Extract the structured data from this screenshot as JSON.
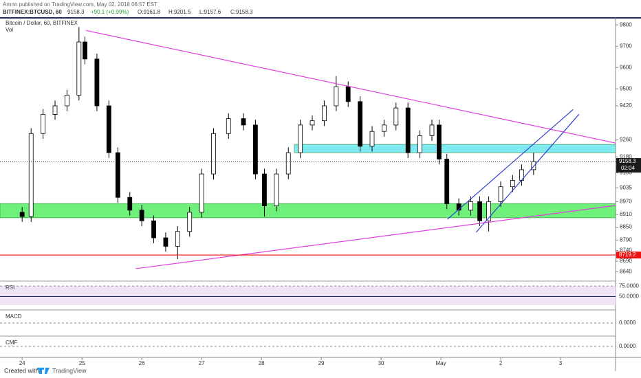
{
  "header": {
    "publisher": "Arnnn published on TradingView.com, May 02, 2018 06:57 EST",
    "symbol": "BITFINEX:BTCUSD, 60",
    "last": "9158.3",
    "change": "+90.1 (+0.99%)",
    "open": "O:9161.8",
    "high": "H:9201.5",
    "low": "L:9157.6",
    "close": "C:9158.3"
  },
  "footer": {
    "created": "Created with",
    "brand": "TradingView"
  },
  "chart_data": {
    "type": "candlestick",
    "title": "Bitcoin / Dollar, 60, BITFINEX",
    "subtitle": "Vol",
    "xlim": [
      -0.37,
      9.92
    ],
    "xticks": [
      {
        "value": 0,
        "label": "24"
      },
      {
        "value": 1,
        "label": "25"
      },
      {
        "value": 2,
        "label": "26"
      },
      {
        "value": 3,
        "label": "27"
      },
      {
        "value": 4,
        "label": "28"
      },
      {
        "value": 5,
        "label": "29"
      },
      {
        "value": 6,
        "label": "30"
      },
      {
        "value": 7,
        "label": "May"
      },
      {
        "value": 8,
        "label": "2"
      },
      {
        "value": 9,
        "label": "3"
      }
    ],
    "ylim": [
      8600,
      9830
    ],
    "yticks": [
      9800,
      9700,
      9600,
      9500,
      9420,
      9260,
      9180,
      9105,
      9035,
      8970,
      8910,
      8850,
      8790,
      8740,
      8690,
      8640
    ],
    "x": [
      0.0,
      0.15,
      0.35,
      0.55,
      0.75,
      0.95,
      1.05,
      1.25,
      1.45,
      1.6,
      1.8,
      2.0,
      2.2,
      2.4,
      2.6,
      2.8,
      3.0,
      3.2,
      3.45,
      3.7,
      3.9,
      4.05,
      4.25,
      4.45,
      4.65,
      4.85,
      5.05,
      5.25,
      5.45,
      5.65,
      5.85,
      6.05,
      6.25,
      6.45,
      6.65,
      6.85,
      6.97,
      7.1,
      7.3,
      7.5,
      7.65,
      7.8,
      8.0,
      8.2,
      8.35,
      8.55
    ],
    "opens": [
      8920,
      8900,
      9290,
      9380,
      9420,
      9470,
      9720,
      9640,
      9420,
      9200,
      8990,
      8930,
      8880,
      8800,
      8760,
      8830,
      8920,
      9100,
      9290,
      9360,
      9330,
      9100,
      8950,
      9100,
      9200,
      9330,
      9350,
      9420,
      9510,
      9440,
      9230,
      9300,
      9330,
      9410,
      9200,
      9280,
      9330,
      9170,
      8960,
      8930,
      8970,
      8880,
      8970,
      9040,
      9070,
      9120
    ],
    "highs": [
      8945,
      9315,
      9405,
      9445,
      9495,
      9790,
      9745,
      9665,
      9445,
      9225,
      9015,
      8955,
      8905,
      8825,
      8855,
      8945,
      9125,
      9315,
      9385,
      9385,
      9355,
      9125,
      9125,
      9225,
      9355,
      9375,
      9445,
      9560,
      9535,
      9465,
      9325,
      9355,
      9435,
      9435,
      9305,
      9355,
      9355,
      9195,
      8985,
      8995,
      8995,
      8995,
      9065,
      9095,
      9145,
      9200
    ],
    "lows": [
      8875,
      8875,
      9265,
      9355,
      9395,
      9445,
      9615,
      9395,
      9175,
      8965,
      8905,
      8855,
      8775,
      8735,
      8700,
      8805,
      8895,
      9075,
      9265,
      9305,
      9075,
      8900,
      8925,
      9075,
      9175,
      9305,
      9325,
      9395,
      9415,
      9205,
      9205,
      9275,
      9305,
      9175,
      9175,
      9255,
      9145,
      8935,
      8905,
      8905,
      8855,
      8830,
      8945,
      9015,
      9045,
      9095
    ],
    "closes": [
      8900,
      9290,
      9380,
      9420,
      9470,
      9720,
      9640,
      9420,
      9200,
      8990,
      8930,
      8880,
      8800,
      8760,
      8830,
      8920,
      9100,
      9290,
      9360,
      9330,
      9100,
      8950,
      9100,
      9200,
      9330,
      9350,
      9420,
      9510,
      9440,
      9230,
      9300,
      9330,
      9410,
      9200,
      9280,
      9330,
      9170,
      8960,
      8930,
      8970,
      8880,
      8970,
      9040,
      9070,
      9120,
      9158
    ],
    "up_color": "#ffffff",
    "down_color": "#000000",
    "zones": [
      {
        "from": 8894,
        "to": 8961,
        "start": -0.37,
        "color": "#6ef07a"
      },
      {
        "from": 9200,
        "to": 9239,
        "start": 4.55,
        "color": "#80eaf2"
      }
    ],
    "levels": [
      {
        "value": 8719.2,
        "color": "#f01010"
      }
    ],
    "trendlines": [
      {
        "x": [
          1.07,
          9.92
        ],
        "y": [
          9774,
          9245
        ],
        "color": "#e040e0"
      },
      {
        "x": [
          1.9,
          9.92
        ],
        "y": [
          8655,
          8952
        ],
        "color": "#e040e0"
      },
      {
        "x": [
          7.11,
          9.21
        ],
        "y": [
          8887,
          9403
        ],
        "color": "#3040d0"
      },
      {
        "x": [
          7.59,
          9.31
        ],
        "y": [
          8826,
          9381
        ],
        "color": "#3040d0"
      }
    ],
    "last_price": 9158.3,
    "countdown": "02:04",
    "panes": [
      {
        "label": "RSI",
        "ylim": [
          20,
          85
        ],
        "yticks": [
          {
            "value": 75,
            "label": "75.0000"
          },
          {
            "value": 50,
            "label": "50.0000"
          }
        ]
      },
      {
        "label": "MACD",
        "ylim": [
          -1,
          1
        ],
        "yticks": [
          {
            "value": 0,
            "label": "0.0000"
          }
        ]
      },
      {
        "label": "CMF",
        "ylim": [
          -1,
          1
        ],
        "yticks": [
          {
            "value": 0,
            "label": "0.0000"
          }
        ]
      }
    ]
  }
}
